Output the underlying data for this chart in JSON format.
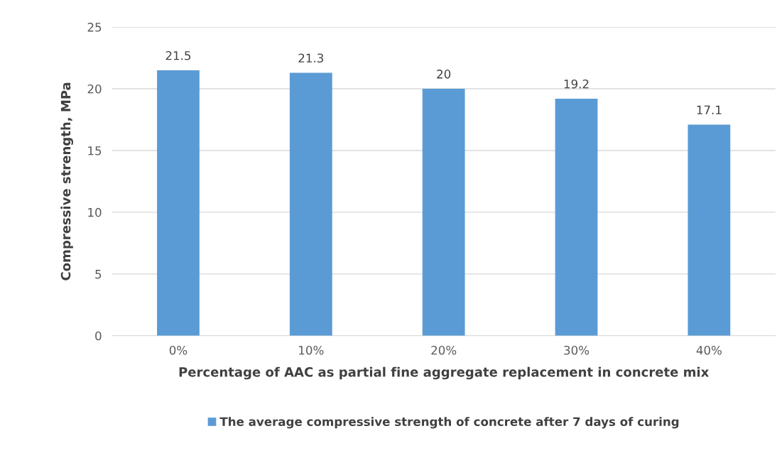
{
  "chart_data": {
    "type": "bar",
    "xlabel": "Percentage of AAC as partial fine aggregate replacement in concrete mix",
    "ylabel": "Compressive strength, MPa",
    "categories": [
      "0%",
      "10%",
      "20%",
      "30%",
      "40%"
    ],
    "series": [
      {
        "name": "The average compressive strength of concrete after 7 days of curing",
        "color": "#5b9bd5",
        "values": [
          21.5,
          21.3,
          20,
          19.2,
          17.1
        ]
      }
    ],
    "ylim": [
      0,
      25
    ],
    "yticks": [
      0,
      5,
      10,
      15,
      20,
      25
    ],
    "grid": "y",
    "legend": "bottom",
    "data_labels": true
  }
}
